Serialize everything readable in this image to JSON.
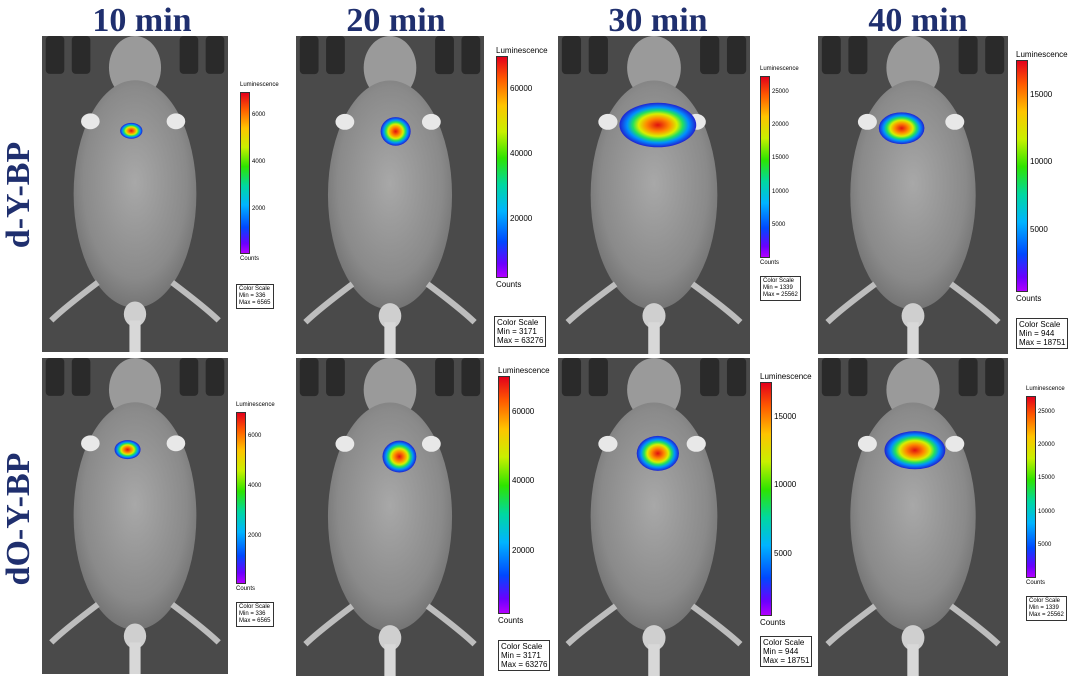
{
  "columns": [
    "10 min",
    "20 min",
    "30 min",
    "40 min"
  ],
  "rows": [
    "d-Y-BP",
    "dO-Y-BP"
  ],
  "colors": {
    "label": "#1f2f6e",
    "background": "#555555"
  },
  "scales": {
    "r1c1": {
      "title": "Luminescence",
      "ticks": [
        "6000",
        "4000",
        "2000"
      ],
      "counts": "Counts",
      "box": [
        "Color Scale",
        "Min = 336",
        "Max = 6565"
      ]
    },
    "r1c2": {
      "title": "Luminescence",
      "ticks": [
        "60000",
        "40000",
        "20000"
      ],
      "counts": "Counts",
      "box": [
        "Color Scale",
        "Min = 3171",
        "Max = 63276"
      ]
    },
    "r1c3": {
      "title": "Luminescence",
      "ticks": [
        "25000",
        "20000",
        "15000",
        "10000",
        "5000"
      ],
      "counts": "Counts",
      "box": [
        "Color Scale",
        "Min = 1339",
        "Max = 25562"
      ]
    },
    "r1c4": {
      "title": "Luminescence",
      "ticks": [
        "15000",
        "10000",
        "5000"
      ],
      "counts": "Counts",
      "box": [
        "Color Scale",
        "Min = 944",
        "Max = 18751"
      ]
    },
    "r2c1": {
      "title": "Luminescence",
      "ticks": [
        "6000",
        "4000",
        "2000"
      ],
      "counts": "Counts",
      "box": [
        "Color Scale",
        "Min = 336",
        "Max = 6565"
      ]
    },
    "r2c2": {
      "title": "Luminescence",
      "ticks": [
        "60000",
        "40000",
        "20000"
      ],
      "counts": "Counts",
      "box": [
        "Color Scale",
        "Min = 3171",
        "Max = 63276"
      ]
    },
    "r2c3": {
      "title": "Luminescence",
      "ticks": [
        "15000",
        "10000",
        "5000"
      ],
      "counts": "Counts",
      "box": [
        "Color Scale",
        "Min = 944",
        "Max = 18751"
      ]
    },
    "r2c4": {
      "title": "Luminescence",
      "ticks": [
        "25000",
        "20000",
        "15000",
        "10000",
        "5000"
      ],
      "counts": "Counts",
      "box": [
        "Color Scale",
        "Min = 1339",
        "Max = 25562"
      ]
    }
  }
}
